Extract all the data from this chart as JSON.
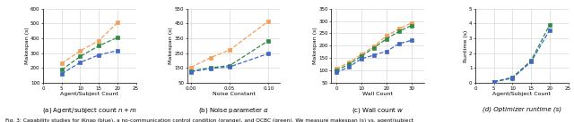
{
  "subplot_a": {
    "xlabel": "Agent/Subject Count",
    "ylabel": "Makespan (s)",
    "xlim": [
      0,
      25
    ],
    "ylim": [
      100,
      600
    ],
    "yticks": [
      100,
      200,
      300,
      400,
      500,
      600
    ],
    "xticks": [
      0,
      5,
      10,
      15,
      20,
      25
    ],
    "caption": "(a) Agent/subject count $n + m$",
    "series": [
      {
        "x": [
          5,
          10,
          15,
          20
        ],
        "y": [
          232,
          315,
          385,
          505
        ],
        "color": "#f4a058",
        "marker": "s"
      },
      {
        "x": [
          5,
          10,
          15,
          20
        ],
        "y": [
          188,
          278,
          350,
          405
        ],
        "color": "#2e8b47",
        "marker": "s"
      },
      {
        "x": [
          5,
          10,
          15,
          20
        ],
        "y": [
          162,
          238,
          288,
          318
        ],
        "color": "#4169c4",
        "marker": "s"
      }
    ]
  },
  "subplot_b": {
    "xlabel": "Noise Constant",
    "ylabel": "Makespan (s)",
    "xlim": [
      -0.005,
      0.115
    ],
    "ylim": [
      50,
      550
    ],
    "yticks": [
      50,
      150,
      250,
      350,
      450,
      550
    ],
    "xticks": [
      0,
      0.05,
      0.1
    ],
    "caption": "(b) Noise parameter $\\alpha$",
    "series": [
      {
        "x": [
          0,
          0.025,
          0.05,
          0.1
        ],
        "y": [
          155,
          220,
          272,
          465
        ],
        "color": "#f4a058",
        "marker": "s"
      },
      {
        "x": [
          0,
          0.025,
          0.05,
          0.1
        ],
        "y": [
          130,
          152,
          167,
          335
        ],
        "color": "#2e8b47",
        "marker": "s"
      },
      {
        "x": [
          0,
          0.025,
          0.05,
          0.1
        ],
        "y": [
          125,
          147,
          158,
          248
        ],
        "color": "#4169c4",
        "marker": "s"
      }
    ]
  },
  "subplot_c": {
    "xlabel": "Wall Count",
    "ylabel": "Makespan (s)",
    "xlim": [
      -2,
      35
    ],
    "ylim": [
      50,
      350
    ],
    "yticks": [
      50,
      100,
      150,
      200,
      250,
      300,
      350
    ],
    "xticks": [
      0,
      10,
      20,
      30
    ],
    "caption": "(c) Wall count $w$",
    "series": [
      {
        "x": [
          0,
          5,
          10,
          15,
          20,
          25,
          30
        ],
        "y": [
          108,
          132,
          165,
          198,
          240,
          268,
          292
        ],
        "color": "#f4a058",
        "marker": "s"
      },
      {
        "x": [
          0,
          5,
          10,
          15,
          20,
          25,
          30
        ],
        "y": [
          100,
          125,
          158,
          192,
          228,
          258,
          282
        ],
        "color": "#2e8b47",
        "marker": "s"
      },
      {
        "x": [
          0,
          5,
          10,
          15,
          20,
          25,
          30
        ],
        "y": [
          92,
          114,
          148,
          162,
          178,
          208,
          222
        ],
        "color": "#4169c4",
        "marker": "s"
      }
    ]
  },
  "subplot_d": {
    "xlabel": "Agent/Subject Count",
    "ylabel": "Runtime (s)",
    "xlim": [
      0,
      25
    ],
    "ylim": [
      0,
      5
    ],
    "yticks": [
      0,
      1,
      2,
      3,
      4,
      5
    ],
    "xticks": [
      0,
      5,
      10,
      15,
      20,
      25
    ],
    "caption": "(d) Optimizer runtime (s)",
    "series": [
      {
        "x": [
          5,
          10,
          15,
          20
        ],
        "y": [
          0.08,
          0.38,
          1.5,
          3.9
        ],
        "color": "#2e8b47",
        "marker": "s"
      },
      {
        "x": [
          5,
          10,
          15,
          20
        ],
        "y": [
          0.07,
          0.32,
          1.42,
          3.55
        ],
        "color": "#4169c4",
        "marker": "s"
      }
    ]
  },
  "fig_caption": "Fig. 3: Capability studies for iKnap (blue), a no-communication control condition (orange), and QCBC (green). We measure makespan (s) vs. agent/subject",
  "background_color": "#ffffff",
  "grid_color": "#d0d0d0",
  "marker_size": 3.5,
  "linewidth": 0.9
}
